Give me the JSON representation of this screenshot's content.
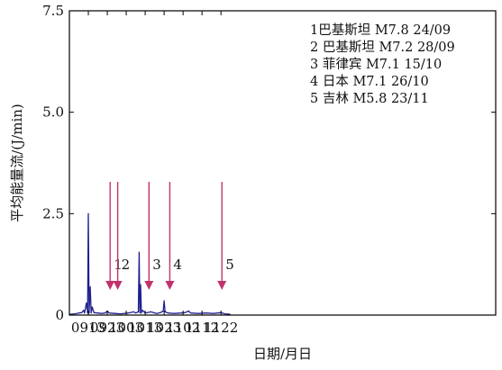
{
  "chart_data": {
    "type": "line",
    "xlabel": "日期/月日",
    "ylabel": "平均能量流/(J/min)",
    "ylim": [
      0,
      7.5
    ],
    "xlim": [
      903,
      1128
    ],
    "x_ticks": [
      {
        "label": "0913",
        "x": 913
      },
      {
        "label": "0923",
        "x": 923
      },
      {
        "label": "1003",
        "x": 933
      },
      {
        "label": "1013",
        "x": 943
      },
      {
        "label": "1023",
        "x": 953
      },
      {
        "label": "1102",
        "x": 963
      },
      {
        "label": "1112",
        "x": 973
      },
      {
        "label": "1122",
        "x": 983
      }
    ],
    "y_ticks": [
      {
        "label": "0",
        "y": 0
      },
      {
        "label": "2.5",
        "y": 2.5
      },
      {
        "label": "5.0",
        "y": 5.0
      },
      {
        "label": "7.5",
        "y": 7.5
      }
    ],
    "grid": false,
    "series_color": "#1f1f8f",
    "arrow_color": "#c0336e",
    "series": [
      {
        "points": [
          [
            903,
            0.02
          ],
          [
            906,
            0.03
          ],
          [
            908,
            0.05
          ],
          [
            909.5,
            0.06
          ],
          [
            910.5,
            0.12
          ],
          [
            911,
            0.05
          ],
          [
            912,
            0.3
          ],
          [
            912.6,
            0.05
          ],
          [
            913.0,
            2.5
          ],
          [
            913.4,
            0.05
          ],
          [
            914,
            0.7
          ],
          [
            914.5,
            0.05
          ],
          [
            915,
            0.2
          ],
          [
            916,
            0.06
          ],
          [
            918,
            0.05
          ],
          [
            920,
            0.04
          ],
          [
            922,
            0.05
          ],
          [
            923,
            0.1
          ],
          [
            924,
            0.05
          ],
          [
            927,
            0.04
          ],
          [
            930,
            0.03
          ],
          [
            934,
            0.05
          ],
          [
            937,
            0.08
          ],
          [
            938,
            0.05
          ],
          [
            939.4,
            0.08
          ],
          [
            939.8,
            1.55
          ],
          [
            940.2,
            0.05
          ],
          [
            940.6,
            0.75
          ],
          [
            941.0,
            0.05
          ],
          [
            941.5,
            0.12
          ],
          [
            943,
            0.05
          ],
          [
            946,
            0.08
          ],
          [
            949,
            0.04
          ],
          [
            951,
            0.06
          ],
          [
            952.5,
            0.1
          ],
          [
            953.0,
            0.35
          ],
          [
            953.5,
            0.08
          ],
          [
            955,
            0.05
          ],
          [
            958,
            0.04
          ],
          [
            962,
            0.05
          ],
          [
            964,
            0.06
          ],
          [
            966,
            0.1
          ],
          [
            967,
            0.05
          ],
          [
            971,
            0.04
          ],
          [
            975,
            0.05
          ],
          [
            979,
            0.04
          ],
          [
            983,
            0.06
          ],
          [
            985,
            0.03
          ],
          [
            988,
            0.02
          ]
        ]
      }
    ],
    "events": [
      {
        "label": "1",
        "x": 924.5
      },
      {
        "label": "2",
        "x": 928.5
      },
      {
        "label": "3",
        "x": 945
      },
      {
        "label": "4",
        "x": 956
      },
      {
        "label": "5",
        "x": 983.5
      }
    ],
    "legend": {
      "placement": "top-right",
      "entries": [
        "1巴基斯坦 M7.8 24/09",
        "2 巴基斯坦 M7.2 28/09",
        "3 菲律宾 M7.1 15/10",
        "4 日本 M7.1 26/10",
        "5 吉林 M5.8 23/11"
      ]
    }
  }
}
